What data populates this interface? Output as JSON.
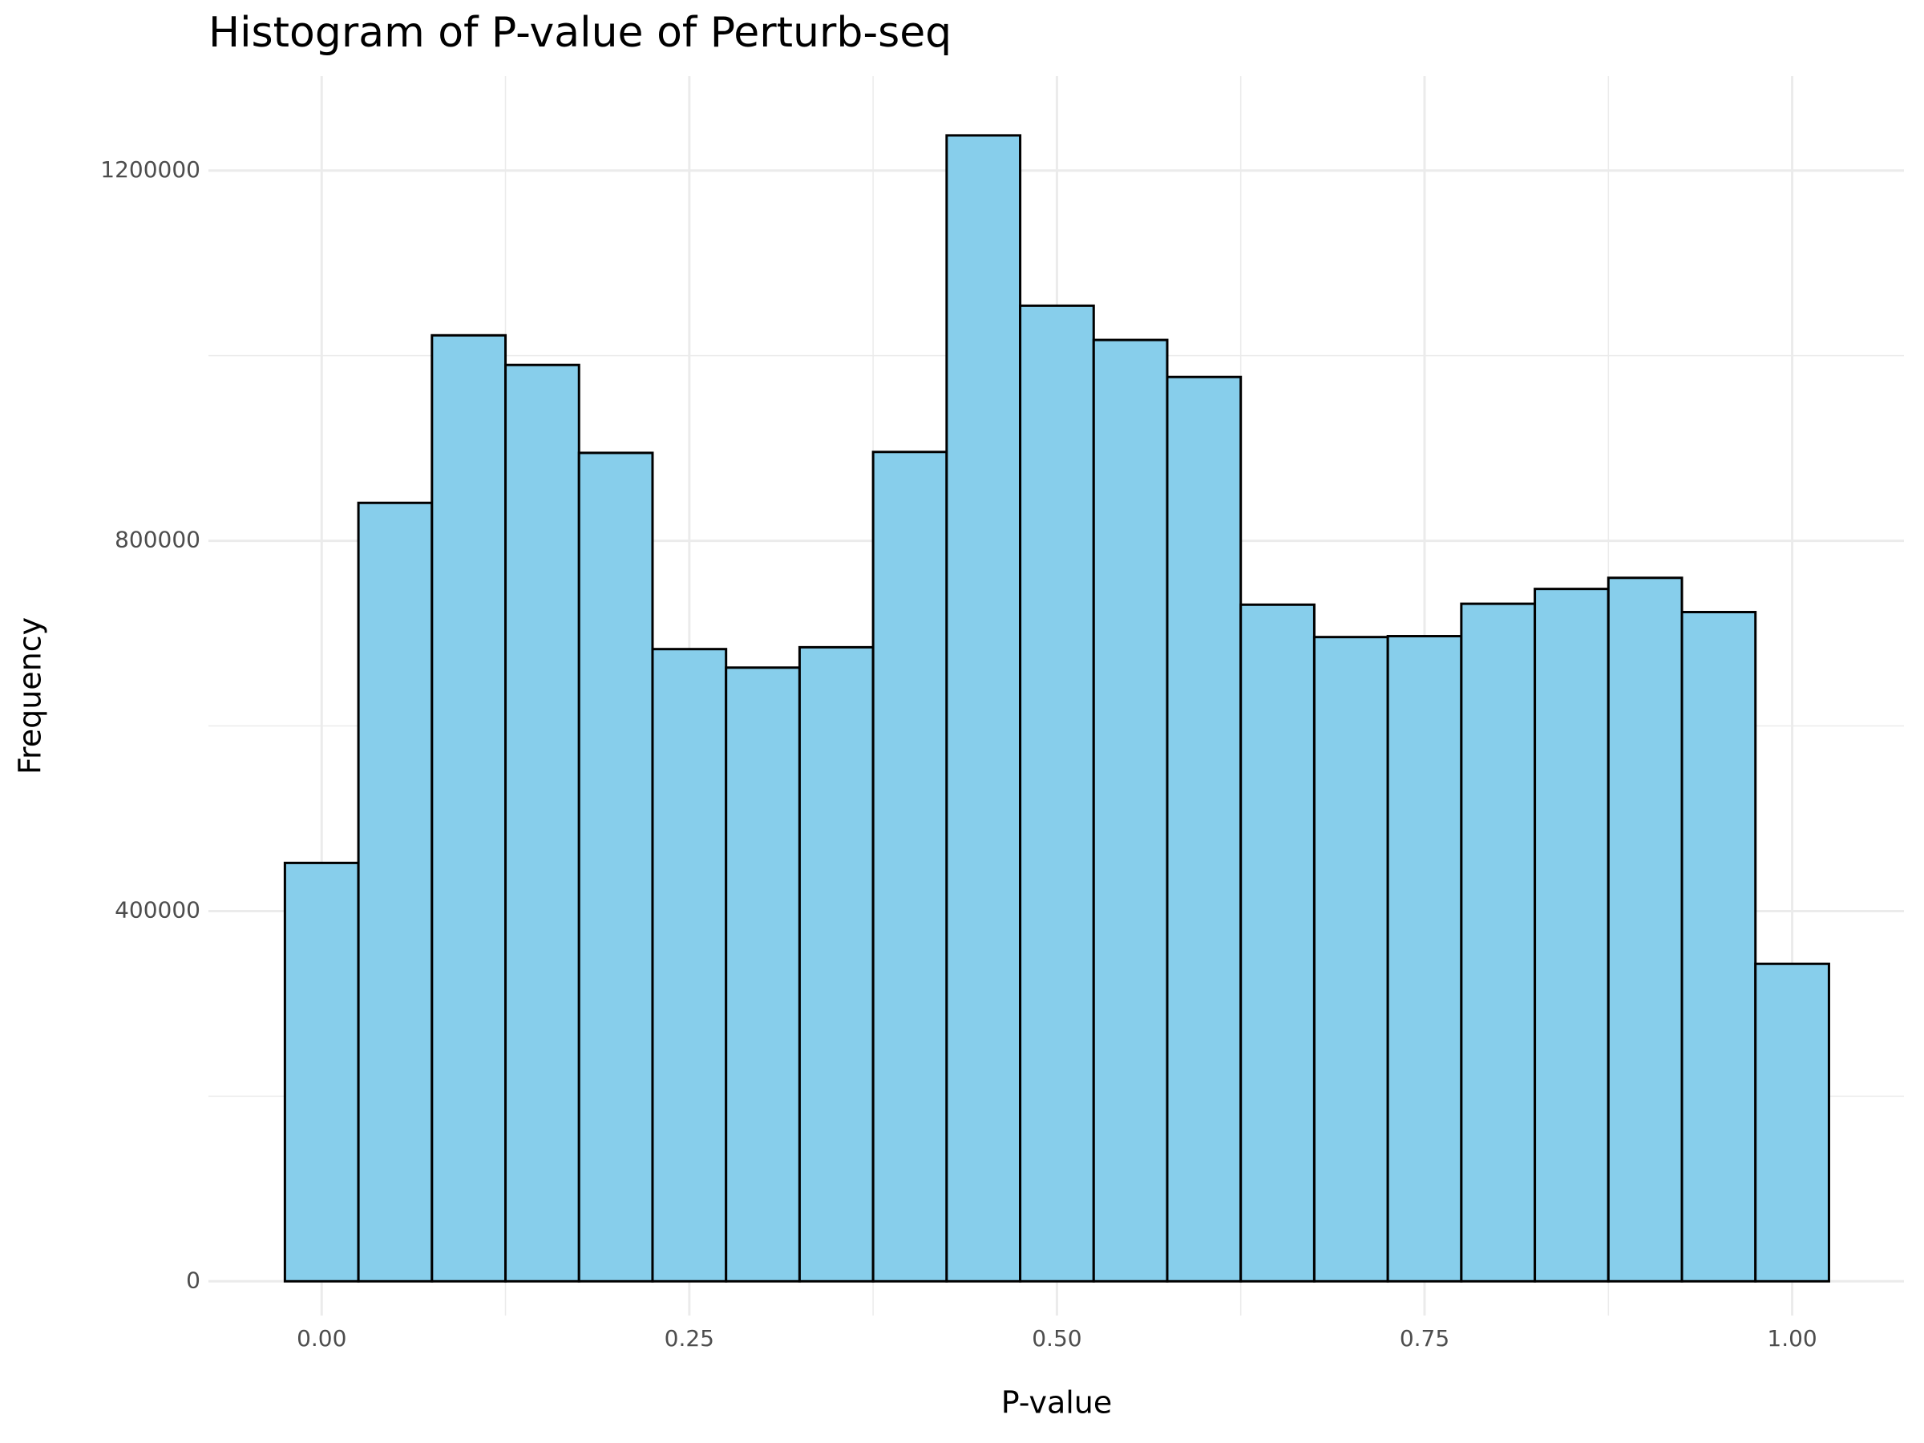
{
  "chart_data": {
    "type": "histogram",
    "title": "Histogram of P-value of Perturb-seq",
    "x_label": "P-value",
    "y_label": "Frequency",
    "bins": [
      -0.025,
      0.025,
      0.075,
      0.125,
      0.175,
      0.225,
      0.275,
      0.325,
      0.375,
      0.425,
      0.475,
      0.525,
      0.575,
      0.625,
      0.675,
      0.725,
      0.775,
      0.825,
      0.875,
      0.925,
      0.975,
      1.025
    ],
    "values": [
      452000,
      841000,
      1022000,
      990000,
      895000,
      683000,
      663000,
      685000,
      896000,
      1238000,
      1054000,
      1017000,
      977000,
      731000,
      696000,
      697000,
      732000,
      748000,
      760000,
      723000,
      343000
    ],
    "color": "#87ceeb",
    "edge_color": "#000000",
    "xlim": [
      -0.077,
      1.076
    ],
    "ylim": [
      -37000,
      1302000
    ],
    "xticks": [
      {
        "value": 0,
        "label": "0.00"
      },
      0.25,
      {
        "value": 0.5,
        "label": "0.50"
      },
      0.75,
      {
        "value": 1,
        "label": "1.00"
      }
    ],
    "yticks": [
      0,
      400000,
      800000,
      1200000
    ],
    "grid": true
  }
}
